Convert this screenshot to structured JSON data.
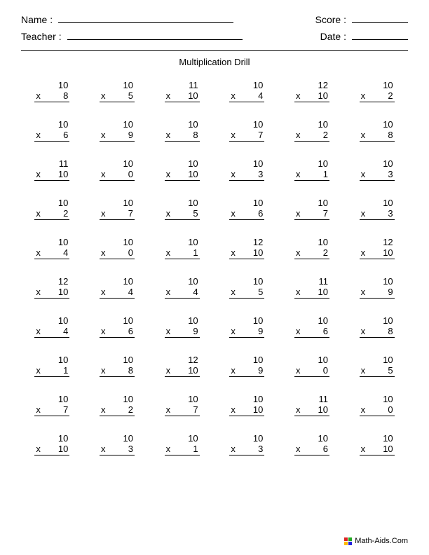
{
  "header": {
    "name_label": "Name :",
    "teacher_label": "Teacher :",
    "score_label": "Score :",
    "date_label": "Date :"
  },
  "title": "Multiplication Drill",
  "operator": "x",
  "problems": [
    [
      10,
      8
    ],
    [
      10,
      5
    ],
    [
      11,
      10
    ],
    [
      10,
      4
    ],
    [
      12,
      10
    ],
    [
      10,
      2
    ],
    [
      10,
      6
    ],
    [
      10,
      9
    ],
    [
      10,
      8
    ],
    [
      10,
      7
    ],
    [
      10,
      2
    ],
    [
      10,
      8
    ],
    [
      11,
      10
    ],
    [
      10,
      0
    ],
    [
      10,
      10
    ],
    [
      10,
      3
    ],
    [
      10,
      1
    ],
    [
      10,
      3
    ],
    [
      10,
      2
    ],
    [
      10,
      7
    ],
    [
      10,
      5
    ],
    [
      10,
      6
    ],
    [
      10,
      7
    ],
    [
      10,
      3
    ],
    [
      10,
      4
    ],
    [
      10,
      0
    ],
    [
      10,
      1
    ],
    [
      12,
      10
    ],
    [
      10,
      2
    ],
    [
      12,
      10
    ],
    [
      12,
      10
    ],
    [
      10,
      4
    ],
    [
      10,
      4
    ],
    [
      10,
      5
    ],
    [
      11,
      10
    ],
    [
      10,
      9
    ],
    [
      10,
      4
    ],
    [
      10,
      6
    ],
    [
      10,
      9
    ],
    [
      10,
      9
    ],
    [
      10,
      6
    ],
    [
      10,
      8
    ],
    [
      10,
      1
    ],
    [
      10,
      8
    ],
    [
      12,
      10
    ],
    [
      10,
      9
    ],
    [
      10,
      0
    ],
    [
      10,
      5
    ],
    [
      10,
      7
    ],
    [
      10,
      2
    ],
    [
      10,
      7
    ],
    [
      10,
      10
    ],
    [
      11,
      10
    ],
    [
      10,
      0
    ],
    [
      10,
      10
    ],
    [
      10,
      3
    ],
    [
      10,
      1
    ],
    [
      10,
      3
    ],
    [
      10,
      6
    ],
    [
      10,
      10
    ]
  ],
  "footer": "Math-Aids.Com"
}
